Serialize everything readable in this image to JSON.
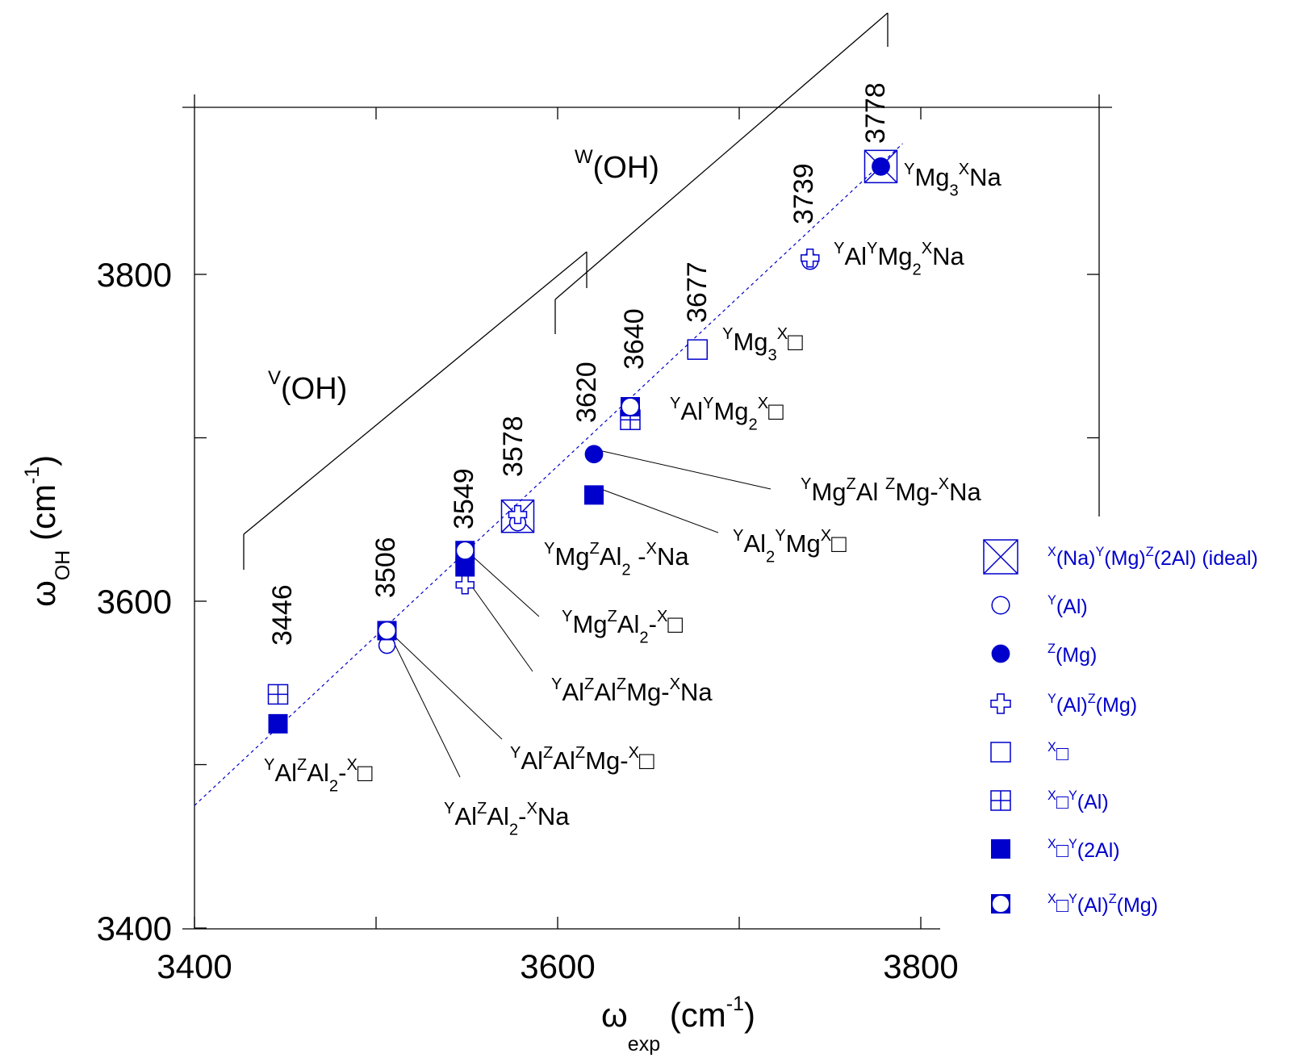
{
  "chart_data": {
    "type": "scatter",
    "xlabel": "ω",
    "xlabel_sub": "exp",
    "xlabel_unit": "(cm",
    "xlabel_unit_sup": "-1",
    "xlabel_close": ")",
    "ylabel": "ω",
    "ylabel_sub": "OH",
    "ylabel_unit": "(cm",
    "ylabel_unit_sup": "-1",
    "ylabel_close": ")",
    "xlim": [
      3400,
      3810
    ],
    "ylim": [
      3400,
      3910
    ],
    "x_ticks": [
      "3400",
      "3600",
      "3800"
    ],
    "y_ticks": [
      "3400",
      "3600",
      "3800"
    ],
    "grid": false,
    "diagonal": {
      "x": [
        3400,
        3790
      ],
      "y": [
        3475,
        3880
      ],
      "style": "dashed",
      "color": "#0000cc"
    },
    "region_labels": [
      {
        "sup": "V",
        "text": "(OH)"
      },
      {
        "sup": "W",
        "text": "(OH)"
      }
    ],
    "peak_labels": [
      "3446",
      "3506",
      "3549",
      "3578",
      "3620",
      "3640",
      "3677",
      "3739",
      "3778"
    ],
    "series": [
      {
        "name": "X(Na)Y(Mg)Z(2Al) (ideal)",
        "marker": "boxed-x",
        "points": [
          {
            "x": 3778,
            "y": 3866
          },
          {
            "x": 3578,
            "y": 3652
          }
        ]
      },
      {
        "name": "Y(Al)",
        "marker": "open-circle",
        "points": [
          {
            "x": 3506,
            "y": 3573
          },
          {
            "x": 3739,
            "y": 3808
          },
          {
            "x": 3578,
            "y": 3648
          }
        ]
      },
      {
        "name": "Z(Mg)",
        "marker": "filled-circle",
        "points": [
          {
            "x": 3778,
            "y": 3866
          },
          {
            "x": 3620,
            "y": 3690
          }
        ]
      },
      {
        "name": "Y(Al)Z(Mg)",
        "marker": "plus",
        "points": [
          {
            "x": 3549,
            "y": 3610
          },
          {
            "x": 3739,
            "y": 3810
          },
          {
            "x": 3578,
            "y": 3653
          }
        ]
      },
      {
        "name": "X□",
        "marker": "open-square",
        "points": [
          {
            "x": 3677,
            "y": 3754
          }
        ]
      },
      {
        "name": "X□Y(Al)",
        "marker": "boxed-plus",
        "points": [
          {
            "x": 3446,
            "y": 3543
          },
          {
            "x": 3640,
            "y": 3711
          }
        ]
      },
      {
        "name": "X□Y(2Al)",
        "marker": "filled-square",
        "points": [
          {
            "x": 3446,
            "y": 3525
          },
          {
            "x": 3549,
            "y": 3621
          },
          {
            "x": 3620,
            "y": 3665
          }
        ]
      },
      {
        "name": "X□Y(Al)Z(Mg)",
        "marker": "square-circle",
        "points": [
          {
            "x": 3506,
            "y": 3582
          },
          {
            "x": 3549,
            "y": 3631
          },
          {
            "x": 3640,
            "y": 3719
          }
        ]
      }
    ],
    "annotations": [
      {
        "id": "a-mg3na",
        "parts": [
          {
            "t": "Y",
            "s": "sup"
          },
          {
            "t": "Mg"
          },
          {
            "t": "3",
            "s": "sub"
          },
          {
            "t": "X",
            "s": "sup"
          },
          {
            "t": "Na"
          }
        ]
      },
      {
        "id": "a-almg2na",
        "parts": [
          {
            "t": "Y",
            "s": "sup"
          },
          {
            "t": "Al"
          },
          {
            "t": "Y",
            "s": "sup"
          },
          {
            "t": "Mg"
          },
          {
            "t": "2",
            "s": "sub"
          },
          {
            "t": "X",
            "s": "sup"
          },
          {
            "t": "Na"
          }
        ]
      },
      {
        "id": "a-mg3v",
        "parts": [
          {
            "t": "Y",
            "s": "sup"
          },
          {
            "t": "Mg"
          },
          {
            "t": "3",
            "s": "sub"
          },
          {
            "t": "X",
            "s": "sup"
          },
          {
            "t": "□"
          }
        ]
      },
      {
        "id": "a-almg2v",
        "parts": [
          {
            "t": "Y",
            "s": "sup"
          },
          {
            "t": "Al"
          },
          {
            "t": "Y",
            "s": "sup"
          },
          {
            "t": "Mg"
          },
          {
            "t": "2",
            "s": "sub"
          },
          {
            "t": "X",
            "s": "sup"
          },
          {
            "t": "□"
          }
        ]
      },
      {
        "id": "a-mgalmgna",
        "parts": [
          {
            "t": "Y",
            "s": "sup"
          },
          {
            "t": "Mg"
          },
          {
            "t": "Z",
            "s": "sup"
          },
          {
            "t": "Al "
          },
          {
            "t": "Z",
            "s": "sup"
          },
          {
            "t": "Mg-"
          },
          {
            "t": "X",
            "s": "sup"
          },
          {
            "t": "Na"
          }
        ]
      },
      {
        "id": "a-al2mgv",
        "parts": [
          {
            "t": "Y",
            "s": "sup"
          },
          {
            "t": "Al"
          },
          {
            "t": "2",
            "s": "sub"
          },
          {
            "t": "Y",
            "s": "sup"
          },
          {
            "t": "Mg"
          },
          {
            "t": "X",
            "s": "sup"
          },
          {
            "t": "□"
          }
        ]
      },
      {
        "id": "a-mgal2na",
        "parts": [
          {
            "t": "Y",
            "s": "sup"
          },
          {
            "t": "Mg"
          },
          {
            "t": "Z",
            "s": "sup"
          },
          {
            "t": "Al"
          },
          {
            "t": "2",
            "s": "sub"
          },
          {
            "t": " -"
          },
          {
            "t": "X",
            "s": "sup"
          },
          {
            "t": "Na"
          }
        ]
      },
      {
        "id": "a-mgal2v",
        "parts": [
          {
            "t": "Y",
            "s": "sup"
          },
          {
            "t": "Mg"
          },
          {
            "t": "Z",
            "s": "sup"
          },
          {
            "t": "Al"
          },
          {
            "t": "2",
            "s": "sub"
          },
          {
            "t": "-"
          },
          {
            "t": "X",
            "s": "sup"
          },
          {
            "t": "□"
          }
        ]
      },
      {
        "id": "a-alalmgna",
        "parts": [
          {
            "t": "Y",
            "s": "sup"
          },
          {
            "t": "Al"
          },
          {
            "t": "Z",
            "s": "sup"
          },
          {
            "t": "Al"
          },
          {
            "t": "Z",
            "s": "sup"
          },
          {
            "t": "Mg-"
          },
          {
            "t": "X",
            "s": "sup"
          },
          {
            "t": "Na"
          }
        ]
      },
      {
        "id": "a-alalmgv",
        "parts": [
          {
            "t": "Y",
            "s": "sup"
          },
          {
            "t": "Al"
          },
          {
            "t": "Z",
            "s": "sup"
          },
          {
            "t": "Al"
          },
          {
            "t": "Z",
            "s": "sup"
          },
          {
            "t": "Mg-"
          },
          {
            "t": "X",
            "s": "sup"
          },
          {
            "t": "□"
          }
        ]
      },
      {
        "id": "a-alal2v",
        "parts": [
          {
            "t": "Y",
            "s": "sup"
          },
          {
            "t": "Al"
          },
          {
            "t": "Z",
            "s": "sup"
          },
          {
            "t": "Al"
          },
          {
            "t": "2",
            "s": "sub"
          },
          {
            "t": "-"
          },
          {
            "t": "X",
            "s": "sup"
          },
          {
            "t": "□"
          }
        ]
      },
      {
        "id": "a-alal2na",
        "parts": [
          {
            "t": "Y",
            "s": "sup"
          },
          {
            "t": "Al"
          },
          {
            "t": "Z",
            "s": "sup"
          },
          {
            "t": "Al"
          },
          {
            "t": "2",
            "s": "sub"
          },
          {
            "t": "-"
          },
          {
            "t": "X",
            "s": "sup"
          },
          {
            "t": "Na"
          }
        ]
      }
    ],
    "legend": {
      "placement": "right",
      "entries": [
        {
          "marker": "boxed-x",
          "parts": [
            {
              "t": "X",
              "s": "sup"
            },
            {
              "t": "(Na)"
            },
            {
              "t": "Y",
              "s": "sup"
            },
            {
              "t": "(Mg)"
            },
            {
              "t": "Z",
              "s": "sup"
            },
            {
              "t": "(2Al)   (ideal)"
            }
          ]
        },
        {
          "marker": "open-circle",
          "parts": [
            {
              "t": "Y",
              "s": "sup"
            },
            {
              "t": "(Al)"
            }
          ]
        },
        {
          "marker": "filled-circle",
          "parts": [
            {
              "t": "Z",
              "s": "sup"
            },
            {
              "t": "(Mg)"
            }
          ]
        },
        {
          "marker": "plus",
          "parts": [
            {
              "t": "Y",
              "s": "sup"
            },
            {
              "t": "(Al)"
            },
            {
              "t": "Z",
              "s": "sup"
            },
            {
              "t": "(Mg)"
            }
          ]
        },
        {
          "marker": "open-square",
          "parts": [
            {
              "t": "X",
              "s": "sup"
            },
            {
              "t": "□"
            }
          ]
        },
        {
          "marker": "boxed-plus",
          "parts": [
            {
              "t": "X",
              "s": "sup"
            },
            {
              "t": "□"
            },
            {
              "t": "Y",
              "s": "sup"
            },
            {
              "t": "(Al)"
            }
          ]
        },
        {
          "marker": "filled-square",
          "parts": [
            {
              "t": "X",
              "s": "sup"
            },
            {
              "t": "□"
            },
            {
              "t": "Y",
              "s": "sup"
            },
            {
              "t": "(2Al)"
            }
          ]
        },
        {
          "marker": "square-circle",
          "parts": [
            {
              "t": "X",
              "s": "sup"
            },
            {
              "t": "□"
            },
            {
              "t": "Y",
              "s": "sup"
            },
            {
              "t": "(Al)"
            },
            {
              "t": "Z",
              "s": "sup"
            },
            {
              "t": "(Mg)"
            }
          ]
        }
      ]
    },
    "colors": {
      "marker": "#0000cc",
      "text": "#000000",
      "legend_text": "#0000cc"
    }
  }
}
